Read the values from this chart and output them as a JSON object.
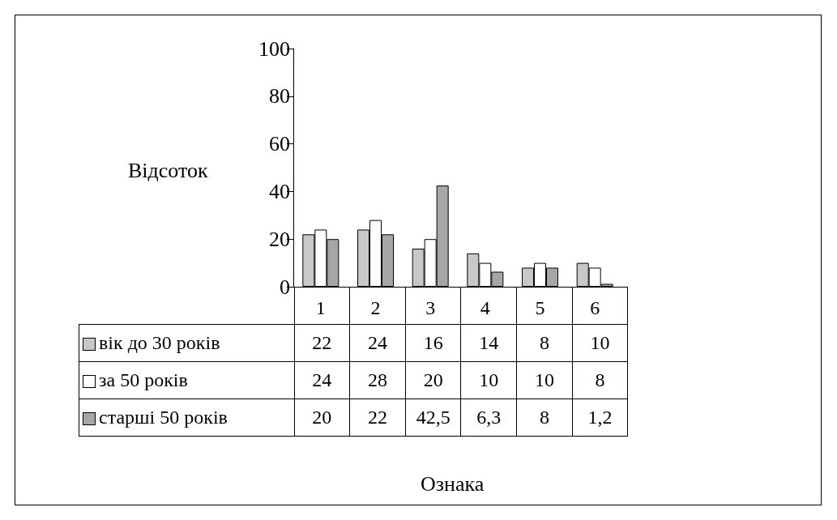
{
  "chart_data": {
    "type": "bar",
    "annotations": [
      "Ознака"
    ],
    "ylabel": "Відсоток",
    "categories": [
      "1",
      "2",
      "3",
      "4",
      "5",
      "6"
    ],
    "series": [
      {
        "name": "вік до 30 років",
        "color": "#c8c8c8",
        "values": [
          22,
          24,
          16,
          14,
          8,
          10
        ],
        "value_labels": [
          "22",
          "24",
          "16",
          "14",
          "8",
          "10"
        ]
      },
      {
        "name": "за 50 років",
        "color": "#ffffff",
        "values": [
          24,
          28,
          20,
          10,
          10,
          8
        ],
        "value_labels": [
          "24",
          "28",
          "20",
          "10",
          "10",
          "8"
        ]
      },
      {
        "name": "старші 50 років",
        "color": "#a6a6a6",
        "values": [
          20,
          22,
          42.5,
          6.3,
          8,
          1.2
        ],
        "value_labels": [
          "20",
          "22",
          "42,5",
          "6,3",
          "8",
          "1,2"
        ]
      }
    ],
    "ylim": [
      0,
      100
    ],
    "yticks": [
      0,
      20,
      40,
      60,
      80,
      100
    ],
    "grid": false,
    "legend": "bottom"
  }
}
